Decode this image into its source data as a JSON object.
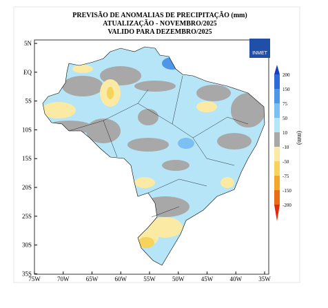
{
  "header": {
    "title_lines": [
      "PREVISÃO DE ANOMALIAS DE PRECIPITAÇÃO (mm)",
      "ATUALIZAÇÃO - NOVEMBRO/2025",
      "VALIDO PARA DEZEMBRO/2025"
    ]
  },
  "map": {
    "lat_labels": [
      "5N",
      "EQ",
      "5S",
      "10S",
      "15S",
      "20S",
      "25S",
      "30S",
      "35S"
    ],
    "lon_labels": [
      "75W",
      "70W",
      "65W",
      "60W",
      "55W",
      "50W",
      "45W",
      "40W",
      "35W"
    ],
    "logo": "INMET"
  },
  "legend": {
    "unit": "(mm)",
    "labels": [
      "200",
      "150",
      "75",
      "50",
      "10",
      "-10",
      "-50",
      "-75",
      "-150",
      "-200"
    ],
    "colors": [
      "#1a3cc0",
      "#2f6bd8",
      "#4d96e8",
      "#7cbff2",
      "#b5e5f7",
      "#a8a8a8",
      "#fbeaa3",
      "#f6d35c",
      "#f2a72a",
      "#ea6d15",
      "#e02a0c"
    ]
  }
}
